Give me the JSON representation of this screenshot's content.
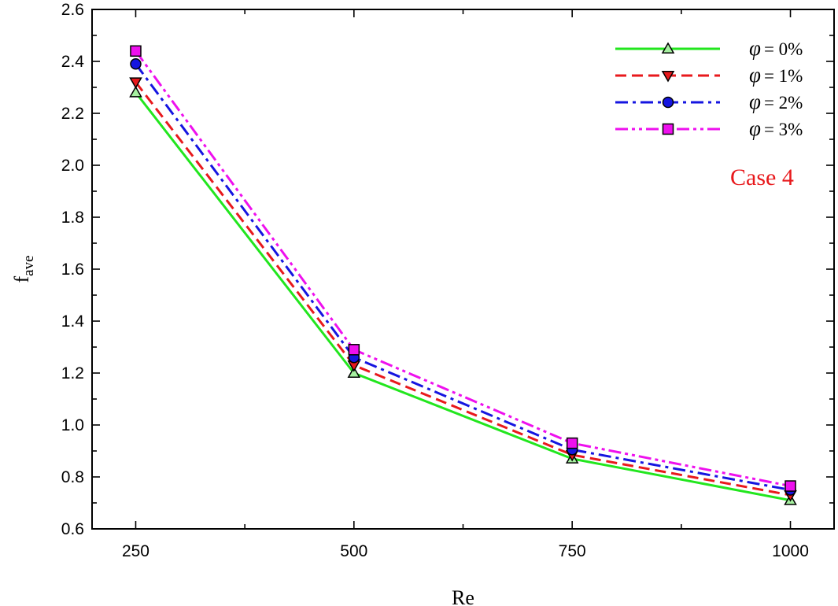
{
  "chart_data": {
    "type": "line",
    "title": "",
    "xlabel": "Re",
    "ylabel_main": "f",
    "ylabel_sub": "ave",
    "x": [
      250,
      500,
      750,
      1000
    ],
    "x_ticks": [
      "250",
      "500",
      "750",
      "1000"
    ],
    "xlim": [
      200,
      1050
    ],
    "ylim": [
      0.6,
      2.6
    ],
    "y_ticks": [
      "0.6",
      "0.8",
      "1.0",
      "1.2",
      "1.4",
      "1.6",
      "1.8",
      "2.0",
      "2.2",
      "2.4",
      "2.6"
    ],
    "grid": false,
    "legend_position": "top-right",
    "annotation": {
      "text": "Case 4",
      "color": "#e8191c"
    },
    "series": [
      {
        "name": "= 0%",
        "symbol": "φ",
        "values": [
          2.28,
          1.2,
          0.87,
          0.71
        ],
        "color": "#22e61e",
        "dash": "solid",
        "marker": "triangle-up",
        "marker_fill": "#a6f0a0"
      },
      {
        "name": "= 1%",
        "symbol": "φ",
        "values": [
          2.32,
          1.23,
          0.885,
          0.73
        ],
        "color": "#e8191c",
        "dash": "dash",
        "marker": "triangle-down",
        "marker_fill": "#e8191c"
      },
      {
        "name": "= 2%",
        "symbol": "φ",
        "values": [
          2.39,
          1.26,
          0.905,
          0.75
        ],
        "color": "#1515e0",
        "dash": "dash-dot",
        "marker": "circle",
        "marker_fill": "#1515e0"
      },
      {
        "name": "= 3%",
        "symbol": "φ",
        "values": [
          2.44,
          1.29,
          0.93,
          0.765
        ],
        "color": "#ee10ee",
        "dash": "dash-dot-dot",
        "marker": "square",
        "marker_fill": "#ee10ee"
      }
    ]
  }
}
